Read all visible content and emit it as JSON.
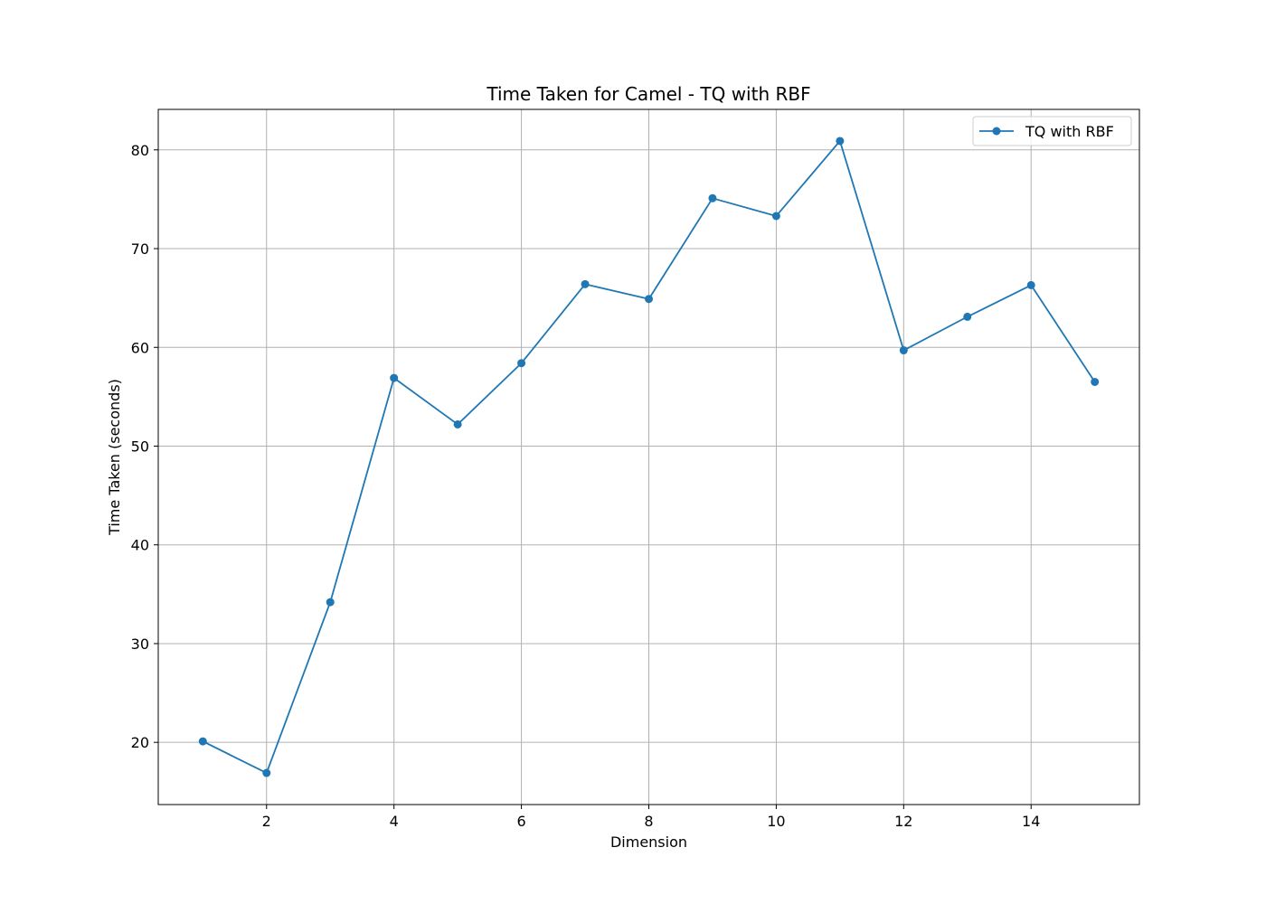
{
  "chart_data": {
    "type": "line",
    "title": "Time Taken for Camel - TQ with RBF",
    "xlabel": "Dimension",
    "ylabel": "Time Taken (seconds)",
    "xlim": [
      0.3,
      15.7
    ],
    "ylim": [
      13.7,
      84.1
    ],
    "xticks": [
      2,
      4,
      6,
      8,
      10,
      12,
      14
    ],
    "yticks": [
      20,
      30,
      40,
      50,
      60,
      70,
      80
    ],
    "grid": true,
    "legend_position": "top-right",
    "series": [
      {
        "name": "TQ with RBF",
        "color": "#1f77b4",
        "marker": "circle",
        "x": [
          1,
          2,
          3,
          4,
          5,
          6,
          7,
          8,
          9,
          10,
          11,
          12,
          13,
          14,
          15
        ],
        "y": [
          20.1,
          16.9,
          34.2,
          56.9,
          52.2,
          58.4,
          66.4,
          64.9,
          75.1,
          73.3,
          80.9,
          59.7,
          63.1,
          66.3,
          56.5
        ]
      }
    ]
  }
}
